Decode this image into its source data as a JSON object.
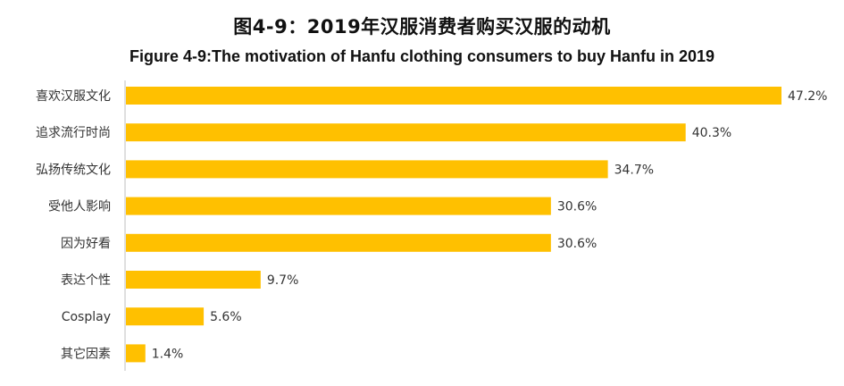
{
  "title_zh": "图4-9：2019年汉服消费者购买汉服的动机",
  "title_en": "Figure 4-9:The motivation of Hanfu clothing consumers to buy Hanfu in 2019",
  "chart_data": {
    "type": "bar",
    "orientation": "horizontal",
    "title": "图4-9：2019年汉服消费者购买汉服的动机",
    "subtitle": "Figure 4-9:The motivation of Hanfu clothing consumers to buy Hanfu in 2019",
    "categories": [
      "喜欢汉服文化",
      "追求流行时尚",
      "弘扬传统文化",
      "受他人影响",
      "因为好看",
      "表达个性",
      "Cosplay",
      "其它因素"
    ],
    "values": [
      47.2,
      40.3,
      34.7,
      30.6,
      30.6,
      9.7,
      5.6,
      1.4
    ],
    "value_labels": [
      "47.2%",
      "40.3%",
      "34.7%",
      "30.6%",
      "30.6%",
      "9.7%",
      "5.6%",
      "1.4%"
    ],
    "unit": "%",
    "xlim": [
      0,
      47.2
    ],
    "grid": false,
    "legend": "none",
    "bar_color": "#FFC000",
    "axis_color": "#BFBFBF"
  }
}
